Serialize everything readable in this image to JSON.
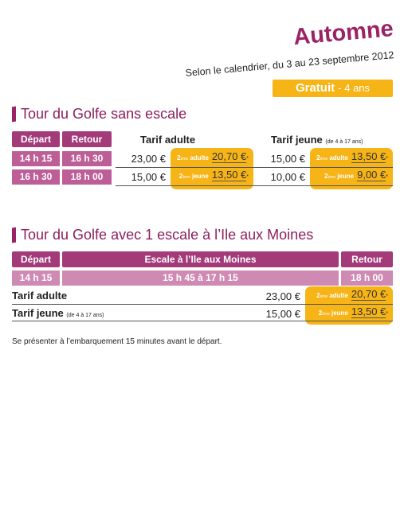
{
  "header": {
    "title": "Automne",
    "subtitle": "Selon le calendrier, du 3 au 23 septembre 2012",
    "badge": {
      "strong": "Gratuit",
      "rest": "- 4 ans"
    }
  },
  "sections": [
    {
      "title": "Tour du Golfe sans escale",
      "columns": [
        "Départ",
        "Retour",
        "Tarif adulte",
        "Tarif jeune"
      ],
      "columns_note": "(de 4 à 17 ans)",
      "rows": [
        {
          "depart": "14 h 15",
          "retour": "16 h 30",
          "adulte": "23,00 €",
          "adulte_promo": {
            "ordinal": "2",
            "suffix": "ème",
            "label": "adulte",
            "price": "20,70 €",
            "mark": "*"
          },
          "jeune": "15,00 €",
          "jeune_promo": {
            "ordinal": "2",
            "suffix": "ème",
            "label": "adulte",
            "price": "13,50 €",
            "mark": "*"
          }
        },
        {
          "depart": "16 h 30",
          "retour": "18 h 00",
          "adulte": "15,00 €",
          "adulte_promo": {
            "ordinal": "2",
            "suffix": "ème",
            "label": "jeune",
            "price": "13,50 €",
            "mark": "*"
          },
          "jeune": "10,00 €",
          "jeune_promo": {
            "ordinal": "2",
            "suffix": "ème",
            "label": "jeune",
            "price": "9,00 €",
            "mark": "*"
          }
        }
      ]
    },
    {
      "title": "Tour du Golfe avec 1 escale à l’Ile aux Moines",
      "columns": [
        "Départ",
        "Escale à l’Ile aux Moines",
        "Retour"
      ],
      "row": [
        "14 h 15",
        "15 h 45 à 17 h 15",
        "18 h 00"
      ],
      "tarifs": [
        {
          "label": "Tarif adulte",
          "price": "23,00 €",
          "promo": {
            "ordinal": "2",
            "suffix": "ème",
            "label": "adulte",
            "price": "20,70 €",
            "mark": "*"
          }
        },
        {
          "label": "Tarif jeune",
          "note": "(de 4 à 17 ans)",
          "price": "15,00 €",
          "promo": {
            "ordinal": "2",
            "suffix": "ème",
            "label": "jeune",
            "price": "13,50 €",
            "mark": "*"
          }
        }
      ]
    }
  ],
  "footer": "Se présenter à l’embarquement 15 minutes avant le départ."
}
